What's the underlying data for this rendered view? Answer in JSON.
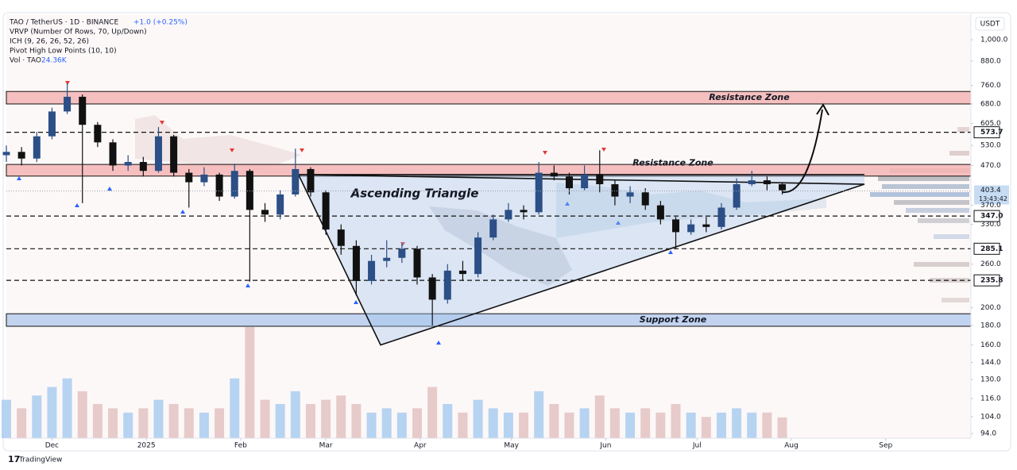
{
  "header": {
    "title": "TAO / TetherUS · 1D · BINANCE",
    "change": "+1.0 (+0.25%)",
    "indicators": [
      "VRVP (Number Of Rows, 70, Up/Down)",
      "ICH (9, 26, 26, 52, 26)",
      "Pivot High Low Points (10, 10)"
    ],
    "volume_name": "Vol · TAO",
    "volume_value": "24.36K",
    "currency": "USDT",
    "brand": "TradingView"
  },
  "chart_data": {
    "type": "candlestick",
    "log_scale": true,
    "grid": false,
    "up_color": "#2b4f86",
    "down_color": "#111111",
    "volume_up_color": "#a9cdf0",
    "volume_down_color": "#e3c2c2",
    "xlim": [
      0,
      317
    ],
    "xticks": [
      {
        "value": 15,
        "label": "Dec"
      },
      {
        "value": 46,
        "label": "2025"
      },
      {
        "value": 77,
        "label": "Feb"
      },
      {
        "value": 105,
        "label": "Mar"
      },
      {
        "value": 136,
        "label": "Apr"
      },
      {
        "value": 166,
        "label": "May"
      },
      {
        "value": 197,
        "label": "Jun"
      },
      {
        "value": 227,
        "label": "Jul"
      },
      {
        "value": 258,
        "label": "Aug"
      },
      {
        "value": 289,
        "label": "Sep"
      }
    ],
    "ylim": [
      91.4,
      1165
    ],
    "yticks": [
      {
        "value": 1000,
        "label": "1,000.0"
      },
      {
        "value": 880,
        "label": "880.0"
      },
      {
        "value": 760,
        "label": "760.0"
      },
      {
        "value": 680,
        "label": "680.0"
      },
      {
        "value": 605,
        "label": "605.0"
      },
      {
        "value": 530,
        "label": "530.0"
      },
      {
        "value": 470,
        "label": "470.0"
      },
      {
        "value": 370,
        "label": "370.0"
      },
      {
        "value": 330,
        "label": "330.0"
      },
      {
        "value": 260,
        "label": "260.0"
      },
      {
        "value": 200,
        "label": "200.0"
      },
      {
        "value": 180,
        "label": "180.0"
      },
      {
        "value": 160,
        "label": "160.0"
      },
      {
        "value": 144,
        "label": "144.0"
      },
      {
        "value": 130,
        "label": "130.0"
      },
      {
        "value": 116,
        "label": "116.0"
      },
      {
        "value": 104,
        "label": "104.0"
      },
      {
        "value": 94,
        "label": "94.0"
      }
    ],
    "x": [
      0,
      5,
      10,
      15,
      20,
      25,
      30,
      35,
      40,
      45,
      50,
      55,
      60,
      65,
      70,
      75,
      80,
      85,
      90,
      95,
      100,
      105,
      110,
      115,
      120,
      125,
      130,
      135,
      140,
      145,
      150,
      155,
      160,
      165,
      170,
      175,
      180,
      185,
      190,
      195,
      200,
      205,
      210,
      215,
      220,
      225,
      230,
      235,
      240,
      245,
      250,
      255
    ],
    "open": [
      500,
      510,
      490,
      560,
      650,
      710,
      600,
      540,
      470,
      480,
      455,
      560,
      450,
      425,
      445,
      390,
      455,
      360,
      350,
      395,
      460,
      400,
      320,
      290,
      235,
      265,
      270,
      285,
      240,
      210,
      250,
      245,
      305,
      340,
      360,
      355,
      450,
      440,
      410,
      445,
      420,
      390,
      400,
      370,
      340,
      315,
      330,
      325,
      365,
      420,
      430,
      420
    ],
    "high": [
      530,
      525,
      575,
      665,
      770,
      720,
      610,
      550,
      500,
      495,
      592,
      565,
      460,
      465,
      450,
      475,
      460,
      375,
      405,
      520,
      465,
      405,
      330,
      300,
      275,
      300,
      295,
      290,
      245,
      260,
      265,
      315,
      350,
      375,
      370,
      480,
      470,
      450,
      470,
      515,
      430,
      415,
      410,
      380,
      345,
      340,
      345,
      375,
      435,
      455,
      440,
      425
    ],
    "low": [
      480,
      470,
      480,
      550,
      640,
      375,
      525,
      455,
      455,
      440,
      450,
      440,
      365,
      415,
      380,
      385,
      234,
      335,
      340,
      390,
      390,
      310,
      275,
      215,
      230,
      255,
      262,
      230,
      180,
      205,
      235,
      240,
      300,
      335,
      340,
      350,
      430,
      395,
      405,
      400,
      370,
      375,
      360,
      330,
      285,
      310,
      315,
      320,
      360,
      415,
      405,
      395
    ],
    "close": [
      510,
      490,
      560,
      650,
      710,
      600,
      540,
      470,
      480,
      455,
      560,
      450,
      425,
      445,
      390,
      455,
      360,
      350,
      395,
      460,
      400,
      320,
      290,
      235,
      265,
      270,
      285,
      240,
      210,
      250,
      245,
      305,
      340,
      360,
      355,
      450,
      440,
      410,
      445,
      420,
      390,
      400,
      370,
      340,
      315,
      330,
      325,
      365,
      420,
      430,
      420,
      405
    ],
    "volume": [
      45,
      35,
      50,
      60,
      70,
      55,
      40,
      35,
      30,
      35,
      45,
      40,
      35,
      30,
      35,
      70,
      130,
      45,
      40,
      55,
      40,
      45,
      50,
      40,
      30,
      35,
      30,
      35,
      60,
      40,
      30,
      45,
      35,
      30,
      30,
      55,
      40,
      30,
      35,
      50,
      35,
      30,
      35,
      30,
      40,
      30,
      25,
      30,
      35,
      30,
      30,
      24.36
    ],
    "zones": [
      {
        "label": "Resistance Zone",
        "from": 680,
        "to": 733
      },
      {
        "label": "Resistance Zone",
        "from": 441,
        "to": 473
      },
      {
        "label": "Support Zone",
        "from": 179,
        "to": 193
      }
    ],
    "levels": [
      573.7,
      {
        "value": 347,
        "label": "347.0"
      },
      285.1,
      235.8
    ],
    "last_price": 403.4,
    "countdown": "13:43:42",
    "triangle": {
      "label": "Ascending Triangle",
      "x": [
        96,
        123,
        282,
        282
      ],
      "y": [
        445,
        160,
        420,
        445
      ]
    }
  }
}
